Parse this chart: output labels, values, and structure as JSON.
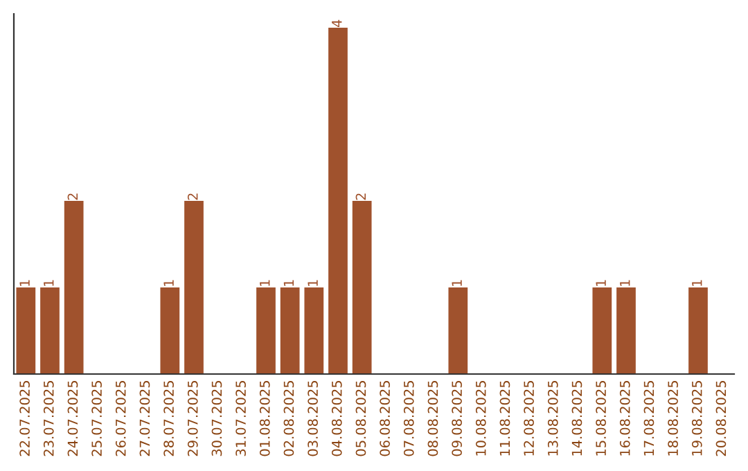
{
  "chart_data": {
    "type": "bar",
    "categories": [
      "22.07.2025",
      "23.07.2025",
      "24.07.2025",
      "25.07.2025",
      "26.07.2025",
      "27.07.2025",
      "28.07.2025",
      "29.07.2025",
      "30.07.2025",
      "31.07.2025",
      "01.08.2025",
      "02.08.2025",
      "03.08.2025",
      "04.08.2025",
      "05.08.2025",
      "06.08.2025",
      "07.08.2025",
      "08.08.2025",
      "09.08.2025",
      "10.08.2025",
      "11.08.2025",
      "12.08.2025",
      "13.08.2025",
      "14.08.2025",
      "15.08.2025",
      "16.08.2025",
      "17.08.2025",
      "18.08.2025",
      "19.08.2025",
      "20.08.2025"
    ],
    "values": [
      1,
      1,
      2,
      0,
      0,
      0,
      1,
      2,
      0,
      0,
      1,
      1,
      1,
      4,
      2,
      0,
      0,
      0,
      1,
      0,
      0,
      0,
      0,
      0,
      1,
      1,
      0,
      0,
      1,
      0
    ],
    "value_labels": [
      "1",
      "1",
      "2",
      null,
      null,
      null,
      "1",
      "2",
      null,
      null,
      "1",
      "1",
      "1",
      "4",
      "2",
      null,
      null,
      null,
      "1",
      null,
      null,
      null,
      null,
      null,
      "1",
      "1",
      null,
      null,
      "1",
      null
    ],
    "color": "#a0522d",
    "tick_labels": "x",
    "grid": false,
    "legend": false
  }
}
